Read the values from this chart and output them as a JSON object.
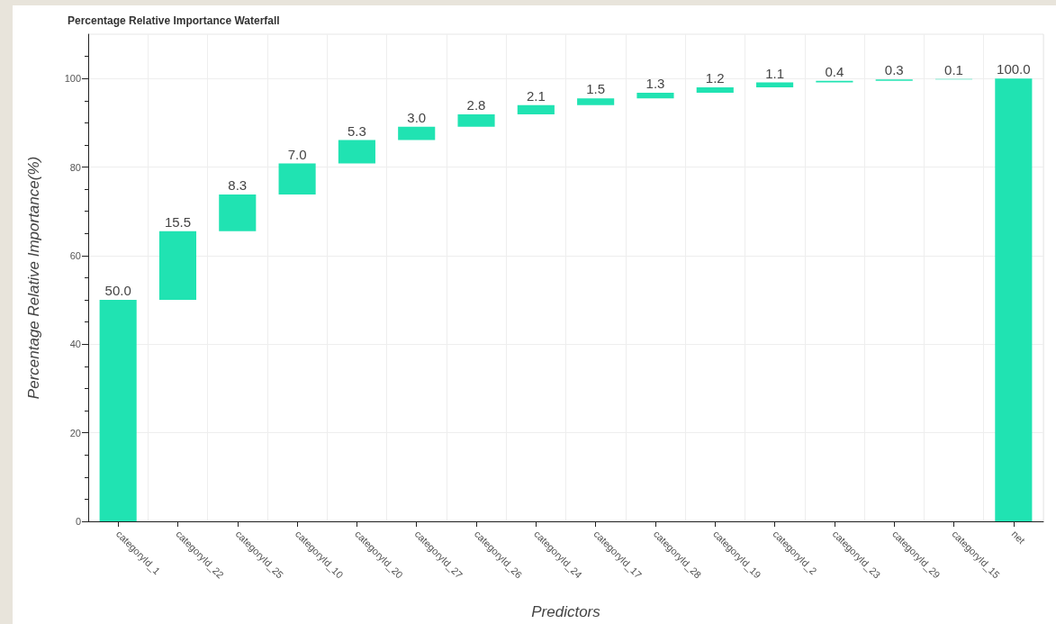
{
  "chart_data": {
    "type": "bar",
    "title": "Percentage Relative Importance Waterfall",
    "xlabel": "Predictors",
    "ylabel": "Percentage Relative Importance(%)",
    "categories": [
      "categoryId_1",
      "categoryId_22",
      "categoryId_25",
      "categoryId_10",
      "categoryId_20",
      "categoryId_27",
      "categoryId_26",
      "categoryId_24",
      "categoryId_17",
      "categoryId_28",
      "categoryId_19",
      "categoryId_2",
      "categoryId_23",
      "categoryId_29",
      "categoryId_15",
      "net"
    ],
    "values": [
      50.0,
      15.5,
      8.3,
      7.0,
      5.3,
      3.0,
      2.8,
      2.1,
      1.5,
      1.3,
      1.2,
      1.1,
      0.4,
      0.3,
      0.1,
      100.0
    ],
    "base": [
      0,
      50.0,
      65.5,
      73.8,
      80.8,
      86.1,
      89.1,
      91.9,
      94.0,
      95.5,
      96.8,
      98.0,
      99.1,
      99.5,
      99.8,
      0
    ],
    "value_labels": [
      "50.0",
      "15.5",
      "8.3",
      "7.0",
      "5.3",
      "3.0",
      "2.8",
      "2.1",
      "1.5",
      "1.3",
      "1.2",
      "1.1",
      "0.4",
      "0.3",
      "0.1",
      "100.0"
    ],
    "color": "#20e3b2",
    "ylim": [
      0,
      110
    ],
    "yticks": [
      0,
      20,
      40,
      60,
      80,
      100
    ],
    "grid": true
  }
}
